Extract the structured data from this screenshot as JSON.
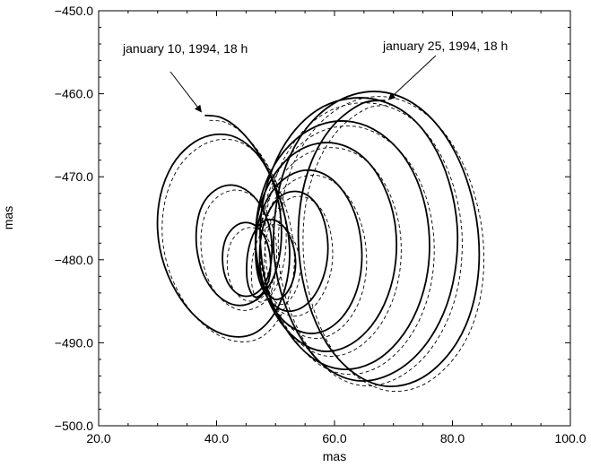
{
  "chart_data": {
    "type": "line",
    "title": "",
    "xlabel": "mas",
    "ylabel": "mas",
    "xlim": [
      20.0,
      100.0
    ],
    "ylim": [
      -500.0,
      -450.0
    ],
    "x_ticks": [
      "20.0",
      "40.0",
      "60.0",
      "80.0",
      "100.0"
    ],
    "y_ticks": [
      "-450.0",
      "-460.0",
      "-470.0",
      "-480.0",
      "-490.0",
      "-500.0"
    ],
    "x_tick_values": [
      20,
      40,
      60,
      80,
      100
    ],
    "y_tick_values": [
      -450,
      -460,
      -470,
      -480,
      -490,
      -500
    ],
    "grid": false,
    "legend": "none",
    "series": [
      {
        "style": "solid",
        "color": "#000000",
        "description_points": "polar motion path (spiral, left loops then right loops)",
        "points": [
          [
            38.0,
            -462.6
          ],
          [
            40.5,
            -462.8
          ],
          [
            43.0,
            -463.8
          ],
          [
            45.5,
            -465.6
          ],
          [
            48.0,
            -468.2
          ],
          [
            50.2,
            -471.6
          ],
          [
            51.8,
            -475.5
          ],
          [
            52.4,
            -479.5
          ],
          [
            51.6,
            -483.5
          ],
          [
            49.5,
            -486.8
          ],
          [
            46.3,
            -488.9
          ],
          [
            42.3,
            -489.2
          ],
          [
            38.0,
            -487.8
          ],
          [
            34.0,
            -484.8
          ],
          [
            31.2,
            -480.8
          ],
          [
            30.0,
            -476.5
          ],
          [
            30.5,
            -472.2
          ],
          [
            32.5,
            -468.6
          ],
          [
            35.5,
            -466.2
          ],
          [
            39.0,
            -465.0
          ],
          [
            42.7,
            -465.1
          ],
          [
            46.0,
            -466.6
          ],
          [
            48.6,
            -469.1
          ],
          [
            50.3,
            -472.4
          ],
          [
            51.0,
            -476.2
          ],
          [
            50.6,
            -479.8
          ],
          [
            49.2,
            -482.8
          ],
          [
            46.8,
            -484.8
          ],
          [
            43.7,
            -485.5
          ],
          [
            40.7,
            -484.6
          ],
          [
            38.2,
            -482.4
          ],
          [
            36.8,
            -479.4
          ],
          [
            36.6,
            -476.2
          ],
          [
            37.6,
            -473.4
          ],
          [
            39.8,
            -471.6
          ],
          [
            42.7,
            -471.0
          ],
          [
            45.6,
            -471.9
          ],
          [
            47.9,
            -474.0
          ],
          [
            49.2,
            -476.9
          ],
          [
            49.3,
            -480.0
          ],
          [
            48.3,
            -482.7
          ],
          [
            46.3,
            -484.2
          ],
          [
            43.8,
            -484.2
          ],
          [
            41.8,
            -482.6
          ],
          [
            41.0,
            -480.0
          ],
          [
            41.6,
            -477.4
          ],
          [
            43.5,
            -475.8
          ],
          [
            45.8,
            -475.6
          ],
          [
            47.8,
            -476.8
          ],
          [
            49.0,
            -479.2
          ],
          [
            49.0,
            -482.0
          ],
          [
            47.8,
            -484.0
          ],
          [
            46.3,
            -484.4
          ],
          [
            45.2,
            -482.5
          ],
          [
            45.3,
            -479.2
          ],
          [
            46.6,
            -476.4
          ],
          [
            48.6,
            -475.2
          ],
          [
            50.8,
            -475.6
          ],
          [
            52.6,
            -477.5
          ],
          [
            53.4,
            -480.2
          ],
          [
            52.8,
            -482.8
          ],
          [
            51.2,
            -484.5
          ],
          [
            49.4,
            -484.6
          ],
          [
            47.8,
            -482.6
          ],
          [
            47.3,
            -479.4
          ],
          [
            47.9,
            -476.0
          ],
          [
            49.6,
            -473.3
          ],
          [
            52.0,
            -471.9
          ],
          [
            54.8,
            -472.0
          ],
          [
            57.2,
            -473.6
          ],
          [
            58.6,
            -476.4
          ],
          [
            58.8,
            -479.8
          ],
          [
            57.6,
            -483.0
          ],
          [
            55.2,
            -485.4
          ],
          [
            52.2,
            -486.2
          ],
          [
            49.4,
            -485.2
          ],
          [
            47.3,
            -482.6
          ],
          [
            46.6,
            -479.0
          ],
          [
            47.2,
            -475.2
          ],
          [
            49.2,
            -472.0
          ],
          [
            52.2,
            -469.9
          ],
          [
            55.8,
            -469.2
          ],
          [
            59.4,
            -470.2
          ],
          [
            62.4,
            -472.8
          ],
          [
            64.2,
            -476.4
          ],
          [
            64.6,
            -480.6
          ],
          [
            63.4,
            -484.4
          ],
          [
            60.8,
            -487.3
          ],
          [
            57.2,
            -488.8
          ],
          [
            53.4,
            -488.4
          ],
          [
            50.0,
            -486.2
          ],
          [
            47.6,
            -482.6
          ],
          [
            46.6,
            -478.4
          ],
          [
            47.2,
            -474.0
          ],
          [
            49.4,
            -470.2
          ],
          [
            52.8,
            -467.4
          ],
          [
            57.0,
            -466.0
          ],
          [
            61.4,
            -466.2
          ],
          [
            65.4,
            -468.0
          ],
          [
            68.4,
            -471.2
          ],
          [
            70.2,
            -475.4
          ],
          [
            70.4,
            -480.0
          ],
          [
            69.0,
            -484.4
          ],
          [
            66.2,
            -488.0
          ],
          [
            62.2,
            -490.4
          ],
          [
            57.8,
            -491.0
          ],
          [
            53.6,
            -489.6
          ],
          [
            50.0,
            -486.6
          ],
          [
            47.6,
            -482.4
          ],
          [
            46.6,
            -477.6
          ],
          [
            47.4,
            -472.8
          ],
          [
            49.8,
            -468.6
          ],
          [
            53.6,
            -465.4
          ],
          [
            58.2,
            -463.6
          ],
          [
            63.2,
            -463.4
          ],
          [
            67.8,
            -464.8
          ],
          [
            71.8,
            -467.6
          ],
          [
            74.6,
            -471.6
          ],
          [
            76.0,
            -476.4
          ],
          [
            75.8,
            -481.4
          ],
          [
            74.0,
            -486.0
          ],
          [
            70.8,
            -489.8
          ],
          [
            66.4,
            -492.4
          ],
          [
            61.4,
            -493.2
          ],
          [
            56.6,
            -492.0
          ],
          [
            52.4,
            -489.0
          ],
          [
            49.2,
            -484.8
          ],
          [
            47.6,
            -479.6
          ],
          [
            47.6,
            -474.2
          ],
          [
            49.4,
            -469.2
          ],
          [
            52.6,
            -465.0
          ],
          [
            57.0,
            -462.0
          ],
          [
            62.2,
            -460.6
          ],
          [
            67.6,
            -460.8
          ],
          [
            72.6,
            -462.6
          ],
          [
            76.6,
            -466.0
          ],
          [
            79.4,
            -470.6
          ],
          [
            80.8,
            -476.0
          ],
          [
            80.4,
            -481.6
          ],
          [
            78.4,
            -486.6
          ],
          [
            74.8,
            -490.8
          ],
          [
            70.0,
            -493.6
          ],
          [
            64.6,
            -494.6
          ],
          [
            59.4,
            -493.4
          ],
          [
            55.0,
            -490.2
          ],
          [
            51.6,
            -485.4
          ],
          [
            49.8,
            -479.8
          ],
          [
            50.0,
            -474.0
          ],
          [
            51.8,
            -468.6
          ],
          [
            55.2,
            -464.2
          ],
          [
            59.8,
            -461.2
          ],
          [
            65.2,
            -459.8
          ],
          [
            70.6,
            -460.2
          ],
          [
            75.6,
            -462.4
          ],
          [
            79.8,
            -466.2
          ],
          [
            82.8,
            -471.2
          ],
          [
            84.4,
            -477.0
          ],
          [
            84.2,
            -482.8
          ],
          [
            82.2,
            -488.0
          ],
          [
            78.6,
            -492.0
          ],
          [
            73.8,
            -494.6
          ],
          [
            68.4,
            -495.2
          ],
          [
            63.2,
            -493.6
          ],
          [
            58.8,
            -490.2
          ],
          [
            55.6,
            -485.2
          ],
          [
            54.0,
            -479.4
          ],
          [
            54.2,
            -473.4
          ],
          [
            56.2,
            -468.0
          ],
          [
            59.8,
            -463.8
          ],
          [
            64.6,
            -461.2
          ],
          [
            68.6,
            -460.8
          ]
        ]
      },
      {
        "style": "dashed",
        "color": "#000000",
        "description_points": "comparison path slightly offset",
        "points_offset": [
          0.8,
          -0.6
        ]
      }
    ],
    "annotations": [
      {
        "text": "january 10, 1994, 18 h",
        "x": 38.0,
        "y": -462.6
      },
      {
        "text": "january 25, 1994, 18 h",
        "x": 68.6,
        "y": -460.8
      }
    ]
  }
}
